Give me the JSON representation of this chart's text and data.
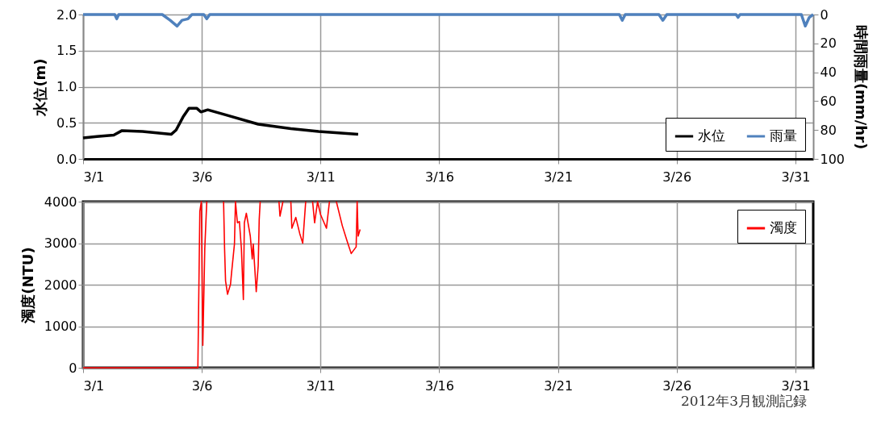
{
  "chart_data": [
    {
      "type": "line",
      "ylabel": "水位(m)",
      "y2label": "時間雨量(mm/hr)",
      "legend": "bottom right",
      "grid": true,
      "xlim": [
        "2012-03-01",
        "2012-03-31T18:00"
      ],
      "xticks": [
        {
          "value": "2012-03-01",
          "label": "3/1"
        },
        {
          "value": "2012-03-06",
          "label": "3/6"
        },
        {
          "value": "2012-03-11",
          "label": "3/11"
        },
        {
          "value": "2012-03-16",
          "label": "3/16"
        },
        {
          "value": "2012-03-21",
          "label": "3/21"
        },
        {
          "value": "2012-03-26",
          "label": "3/26"
        },
        {
          "value": "2012-03-31",
          "label": "3/31"
        }
      ],
      "ylim": [
        0,
        2.0
      ],
      "yticks": [
        {
          "value": 0,
          "label": "0.0"
        },
        {
          "value": 0.5,
          "label": "0.5"
        },
        {
          "value": 1,
          "label": "1.0"
        },
        {
          "value": 1.5,
          "label": "1.5"
        },
        {
          "value": 2,
          "label": "2.0"
        }
      ],
      "y2lim": [
        100,
        0
      ],
      "y2ticks": [
        0,
        20,
        40,
        60,
        80,
        100
      ],
      "series": [
        {
          "name": "水位",
          "color": "#000000",
          "axis": "y",
          "x": [
            "2012-03-01T00:00",
            "2012-03-01T14:00",
            "2012-03-02T07:00",
            "2012-03-02T15:00",
            "2012-03-03T12:00",
            "2012-03-04T17:00",
            "2012-03-04T22:00",
            "2012-03-05T05:00",
            "2012-03-05T11:00",
            "2012-03-05T19:00",
            "2012-03-05T23:00",
            "2012-03-06T06:00",
            "2012-03-07T00:00",
            "2012-03-08T09:00",
            "2012-03-09T18:00",
            "2012-03-10T22:00",
            "2012-03-12T14:00"
          ],
          "values": [
            0.29,
            0.31,
            0.33,
            0.39,
            0.38,
            0.34,
            0.4,
            0.58,
            0.7,
            0.7,
            0.65,
            0.68,
            0.61,
            0.48,
            0.42,
            0.38,
            0.34
          ]
        },
        {
          "name": "雨量",
          "color": "#4f81bd",
          "axis": "y2",
          "x": [
            "2012-03-01T00:00",
            "2012-03-02T08:00",
            "2012-03-02T10:00",
            "2012-03-02T12:00",
            "2012-03-04T08:00",
            "2012-03-04T16:00",
            "2012-03-04T23:00",
            "2012-03-05T04:00",
            "2012-03-05T10:00",
            "2012-03-05T14:00",
            "2012-03-06T02:00",
            "2012-03-06T05:00",
            "2012-03-06T08:00",
            "2012-03-23T14:00",
            "2012-03-23T17:00",
            "2012-03-23T20:00",
            "2012-03-25T06:00",
            "2012-03-25T10:00",
            "2012-03-25T14:00",
            "2012-03-28T12:00",
            "2012-03-28T14:00",
            "2012-03-28T16:00",
            "2012-03-31T06:00",
            "2012-03-31T10:00",
            "2012-03-31T14:00",
            "2012-03-31T18:00"
          ],
          "values": [
            0,
            0,
            3,
            0,
            0,
            4,
            8,
            4,
            3,
            0,
            0,
            3,
            0,
            0,
            4,
            0,
            0,
            4,
            0,
            0,
            2,
            0,
            0,
            8,
            2,
            0
          ]
        }
      ]
    },
    {
      "type": "line",
      "ylabel": "濁度(NTU)",
      "legend": "top right",
      "grid": true,
      "xlim": [
        "2012-03-01",
        "2012-03-31T18:00"
      ],
      "xticks": [
        {
          "value": "2012-03-01",
          "label": "3/1"
        },
        {
          "value": "2012-03-06",
          "label": "3/6"
        },
        {
          "value": "2012-03-11",
          "label": "3/11"
        },
        {
          "value": "2012-03-16",
          "label": "3/16"
        },
        {
          "value": "2012-03-21",
          "label": "3/21"
        },
        {
          "value": "2012-03-26",
          "label": "3/26"
        },
        {
          "value": "2012-03-31",
          "label": "3/31"
        }
      ],
      "ylim": [
        0,
        4000
      ],
      "yticks": [
        0,
        1000,
        2000,
        3000,
        4000
      ],
      "annotations": [
        "2012年3月観測記録"
      ],
      "series": [
        {
          "name": "濁度",
          "color": "#ff0000",
          "x": [
            "2012-03-01T00:00",
            "2012-03-05T08:00",
            "2012-03-05T20:00",
            "2012-03-05T22:00",
            "2012-03-05T23:30",
            "2012-03-06T01:00",
            "2012-03-06T03:00",
            "2012-03-06T05:00",
            "2012-03-06T12:00",
            "2012-03-06T22:00",
            "2012-03-06T23:00",
            "2012-03-07T00:00",
            "2012-03-07T02:00",
            "2012-03-07T05:00",
            "2012-03-07T06:00",
            "2012-03-07T09:00",
            "2012-03-07T10:00",
            "2012-03-07T12:00",
            "2012-03-07T14:00",
            "2012-03-07T16:00",
            "2012-03-07T18:00",
            "2012-03-07T19:00",
            "2012-03-07T21:00",
            "2012-03-08T01:00",
            "2012-03-08T03:00",
            "2012-03-08T04:00",
            "2012-03-08T07:00",
            "2012-03-08T09:00",
            "2012-03-08T10:00",
            "2012-03-08T11:00",
            "2012-03-08T20:00",
            "2012-03-09T06:00",
            "2012-03-09T07:00",
            "2012-03-09T10:00",
            "2012-03-09T13:00",
            "2012-03-09T18:00",
            "2012-03-09T19:00",
            "2012-03-09T23:00",
            "2012-03-10T03:00",
            "2012-03-10T06:00",
            "2012-03-10T09:00",
            "2012-03-10T12:00",
            "2012-03-10T16:00",
            "2012-03-10T18:00",
            "2012-03-10T21:00",
            "2012-03-11T00:00",
            "2012-03-11T06:00",
            "2012-03-11T09:00",
            "2012-03-11T12:00",
            "2012-03-11T16:00",
            "2012-03-11T22:00",
            "2012-03-12T03:00",
            "2012-03-12T07:00",
            "2012-03-12T12:00",
            "2012-03-12T13:00",
            "2012-03-12T14:00",
            "2012-03-12T16:00"
          ],
          "values": [
            0,
            0,
            0,
            3770,
            4000,
            540,
            2870,
            4000,
            null,
            4000,
            2870,
            2090,
            1770,
            2010,
            2270,
            2980,
            4000,
            3490,
            3520,
            2870,
            1640,
            3490,
            3720,
            3170,
            2620,
            2980,
            1830,
            2460,
            3560,
            4000,
            null,
            4000,
            3650,
            4000,
            null,
            4000,
            3360,
            3620,
            3230,
            3000,
            4000,
            null,
            4000,
            3490,
            4000,
            3690,
            3360,
            4000,
            null,
            4000,
            3420,
            3040,
            2750,
            2910,
            4000,
            3170,
            3330
          ]
        }
      ]
    }
  ]
}
